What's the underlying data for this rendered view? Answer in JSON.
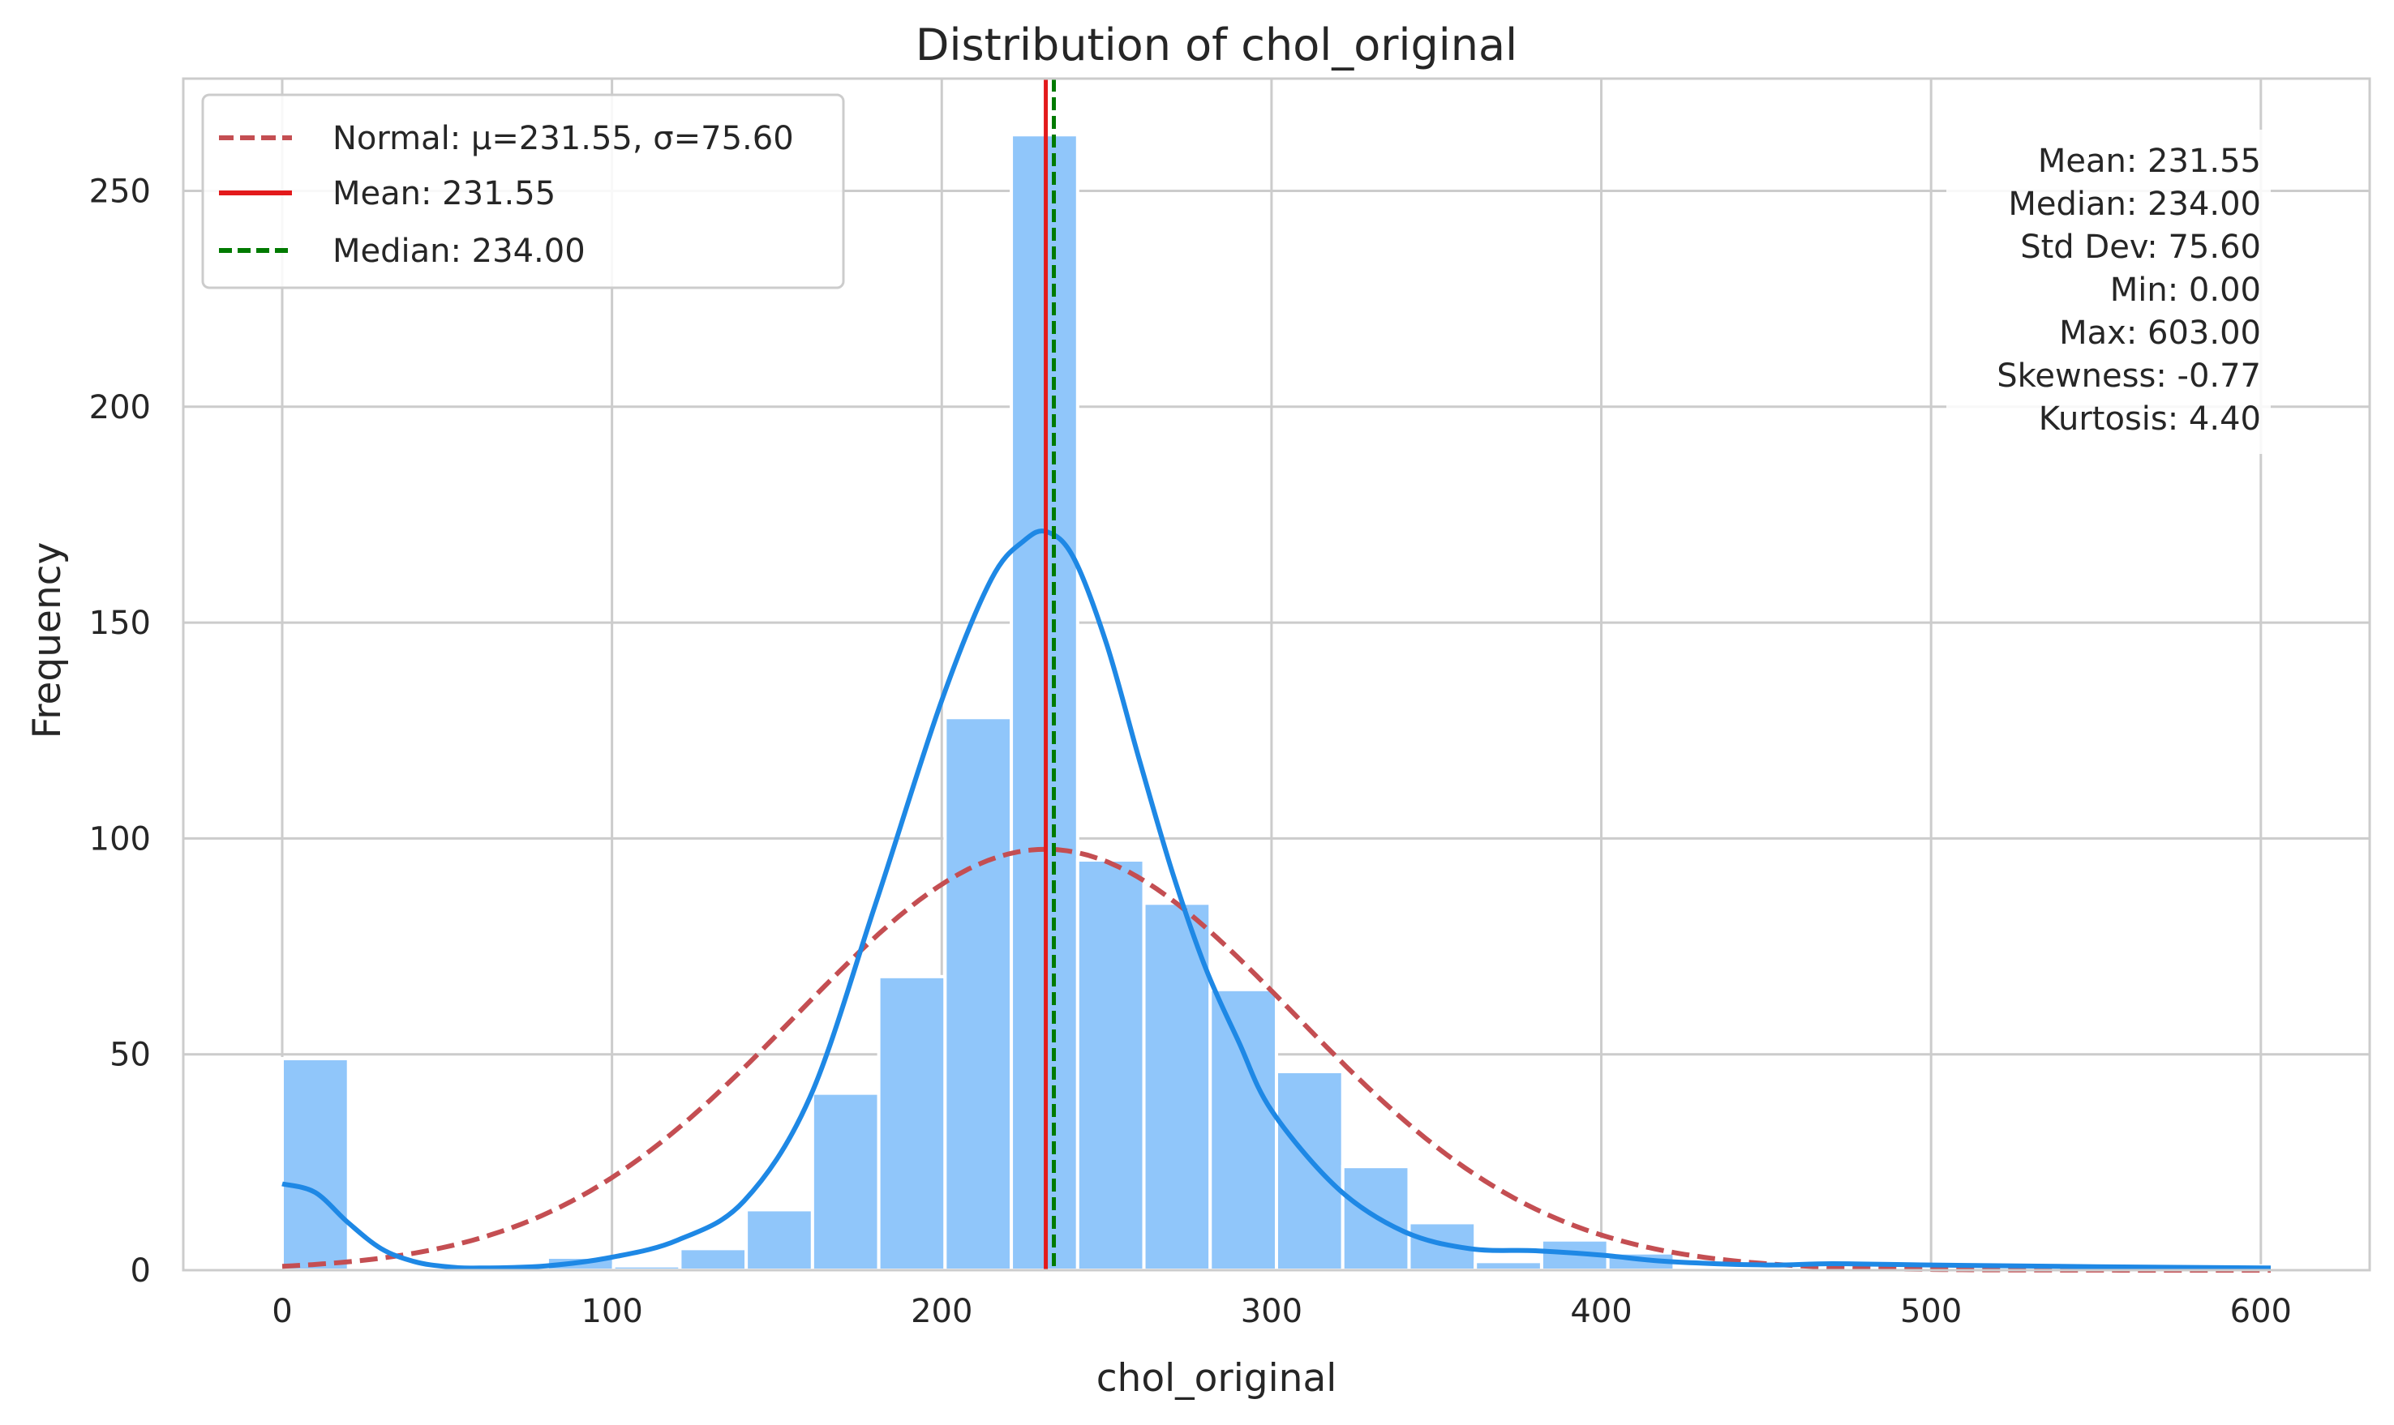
{
  "chart_data": {
    "type": "bar",
    "title": "Distribution of chol_original",
    "xlabel": "chol_original",
    "ylabel": "Frequency",
    "xlim": [
      -30,
      633
    ],
    "ylim": [
      0,
      276
    ],
    "xticks": [
      0,
      100,
      200,
      300,
      400,
      500,
      600
    ],
    "yticks": [
      0,
      50,
      100,
      150,
      200,
      250
    ],
    "grid": true,
    "legend_position": "top-left",
    "bin_width": 20.1,
    "bins": [
      {
        "x0": 0.0,
        "x1": 20.1,
        "count": 49
      },
      {
        "x0": 20.1,
        "x1": 40.2,
        "count": 0
      },
      {
        "x0": 40.2,
        "x1": 60.3,
        "count": 0
      },
      {
        "x0": 60.3,
        "x1": 80.4,
        "count": 0
      },
      {
        "x0": 80.4,
        "x1": 100.5,
        "count": 3
      },
      {
        "x0": 100.5,
        "x1": 120.6,
        "count": 1
      },
      {
        "x0": 120.6,
        "x1": 140.7,
        "count": 5
      },
      {
        "x0": 140.7,
        "x1": 160.8,
        "count": 14
      },
      {
        "x0": 160.8,
        "x1": 180.9,
        "count": 41
      },
      {
        "x0": 180.9,
        "x1": 201.0,
        "count": 68
      },
      {
        "x0": 201.0,
        "x1": 221.1,
        "count": 128
      },
      {
        "x0": 221.1,
        "x1": 241.2,
        "count": 263
      },
      {
        "x0": 241.2,
        "x1": 261.3,
        "count": 95
      },
      {
        "x0": 261.3,
        "x1": 281.4,
        "count": 85
      },
      {
        "x0": 281.4,
        "x1": 301.5,
        "count": 65
      },
      {
        "x0": 301.5,
        "x1": 321.6,
        "count": 46
      },
      {
        "x0": 321.6,
        "x1": 341.7,
        "count": 24
      },
      {
        "x0": 341.7,
        "x1": 361.8,
        "count": 11
      },
      {
        "x0": 361.8,
        "x1": 381.9,
        "count": 2
      },
      {
        "x0": 381.9,
        "x1": 402.0,
        "count": 7
      },
      {
        "x0": 402.0,
        "x1": 422.1,
        "count": 4
      },
      {
        "x0": 422.1,
        "x1": 442.2,
        "count": 0
      },
      {
        "x0": 442.2,
        "x1": 462.3,
        "count": 0
      },
      {
        "x0": 462.3,
        "x1": 482.4,
        "count": 0
      },
      {
        "x0": 482.4,
        "x1": 502.5,
        "count": 0
      },
      {
        "x0": 502.5,
        "x1": 522.6,
        "count": 0
      },
      {
        "x0": 522.6,
        "x1": 542.7,
        "count": 0
      },
      {
        "x0": 542.7,
        "x1": 562.8,
        "count": 0
      },
      {
        "x0": 562.8,
        "x1": 582.9,
        "count": 0
      },
      {
        "x0": 582.9,
        "x1": 603.0,
        "count": 1
      }
    ],
    "kde_curve": {
      "x": [
        0,
        10,
        20,
        30,
        40,
        50,
        60,
        80,
        100,
        120,
        140,
        160,
        180,
        200,
        215,
        225,
        232,
        240,
        250,
        260,
        270,
        280,
        290,
        300,
        320,
        340,
        360,
        380,
        400,
        420,
        450,
        470,
        500,
        550,
        603
      ],
      "y": [
        20,
        18,
        11,
        5,
        2,
        0.8,
        0.5,
        1,
        3,
        7,
        16,
        40,
        85,
        132,
        160,
        169,
        171,
        165,
        145,
        118,
        92,
        70,
        53,
        37,
        19,
        9,
        5,
        4.5,
        3.5,
        2,
        1.2,
        1.5,
        1.2,
        0.8,
        0.5
      ]
    },
    "normal_curve": {
      "mu": 231.55,
      "sigma": 75.6,
      "peak_count": 97.5,
      "x_range": [
        0,
        603
      ]
    },
    "series": [
      {
        "name": "Normal: μ=231.55, σ=75.60",
        "kind": "dashed-line",
        "color": "#c44e52"
      },
      {
        "name": "Mean: 231.55",
        "kind": "vline",
        "value": 231.55,
        "color": "#e31a1c"
      },
      {
        "name": "Median: 234.00",
        "kind": "vline",
        "value": 234.0,
        "color": "#007a00"
      }
    ],
    "stats_box": [
      "Mean: 231.55",
      "Median: 234.00",
      "Std Dev: 75.60",
      "Min: 0.00",
      "Max: 603.00",
      "Skewness: -0.77",
      "Kurtosis: 4.40"
    ],
    "colors": {
      "bars": "#90c6fa",
      "kde": "#1e88e5",
      "normal": "#c44e52",
      "mean": "#e31a1c",
      "median": "#007a00",
      "grid": "#cccccc",
      "spine": "#cccccc"
    }
  }
}
